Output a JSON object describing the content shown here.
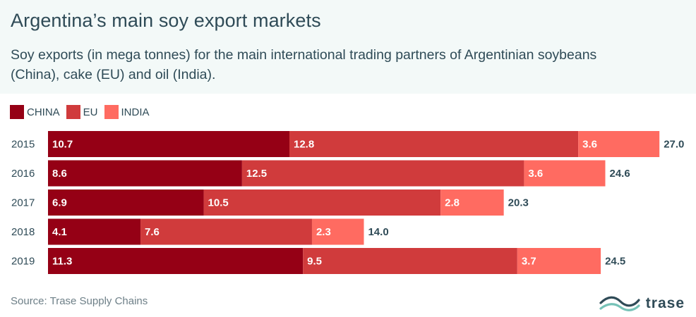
{
  "header": {
    "title": "Argentina’s main soy export markets",
    "subtitle": "Soy exports (in mega tonnes) for the main international trading partners of Argentinian soybeans (China), cake (EU) and oil (India)."
  },
  "legend": [
    {
      "label": "CHINA",
      "color": "#950015"
    },
    {
      "label": "EU",
      "color": "#d03b3c"
    },
    {
      "label": "INDIA",
      "color": "#ff6b61"
    }
  ],
  "footer": {
    "source": "Source: Trase Supply Chains",
    "logo_text": "trase"
  },
  "chart_data": {
    "type": "bar",
    "orientation": "horizontal",
    "stacked": true,
    "categories": [
      "2015",
      "2016",
      "2017",
      "2018",
      "2019"
    ],
    "series": [
      {
        "name": "CHINA",
        "color": "#950015",
        "values": [
          10.7,
          8.6,
          6.9,
          4.1,
          11.3
        ]
      },
      {
        "name": "EU",
        "color": "#d03b3c",
        "values": [
          12.8,
          12.5,
          10.5,
          7.6,
          9.5
        ]
      },
      {
        "name": "INDIA",
        "color": "#ff6b61",
        "values": [
          3.6,
          3.6,
          2.8,
          2.3,
          3.7
        ]
      }
    ],
    "totals": [
      "27.0",
      "24.6",
      "20.3",
      "14.0",
      "24.5"
    ],
    "xlim": [
      0,
      27.0
    ],
    "legend_position": "top-left",
    "grid": false
  }
}
